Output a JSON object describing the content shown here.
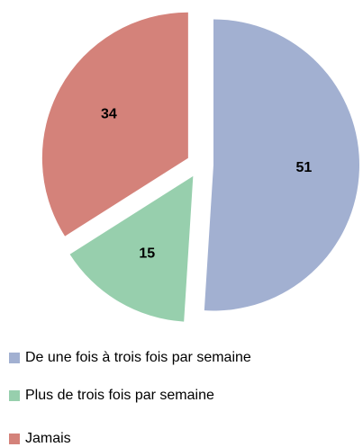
{
  "chart_data": {
    "type": "pie",
    "categories": [
      "De une fois à trois fois par semaine",
      "Plus de trois fois par semaine",
      "Jamais"
    ],
    "values": [
      51,
      15,
      34
    ],
    "colors": [
      "#a2b0d1",
      "#97cfad",
      "#d4827a"
    ],
    "legend": "bottom"
  }
}
